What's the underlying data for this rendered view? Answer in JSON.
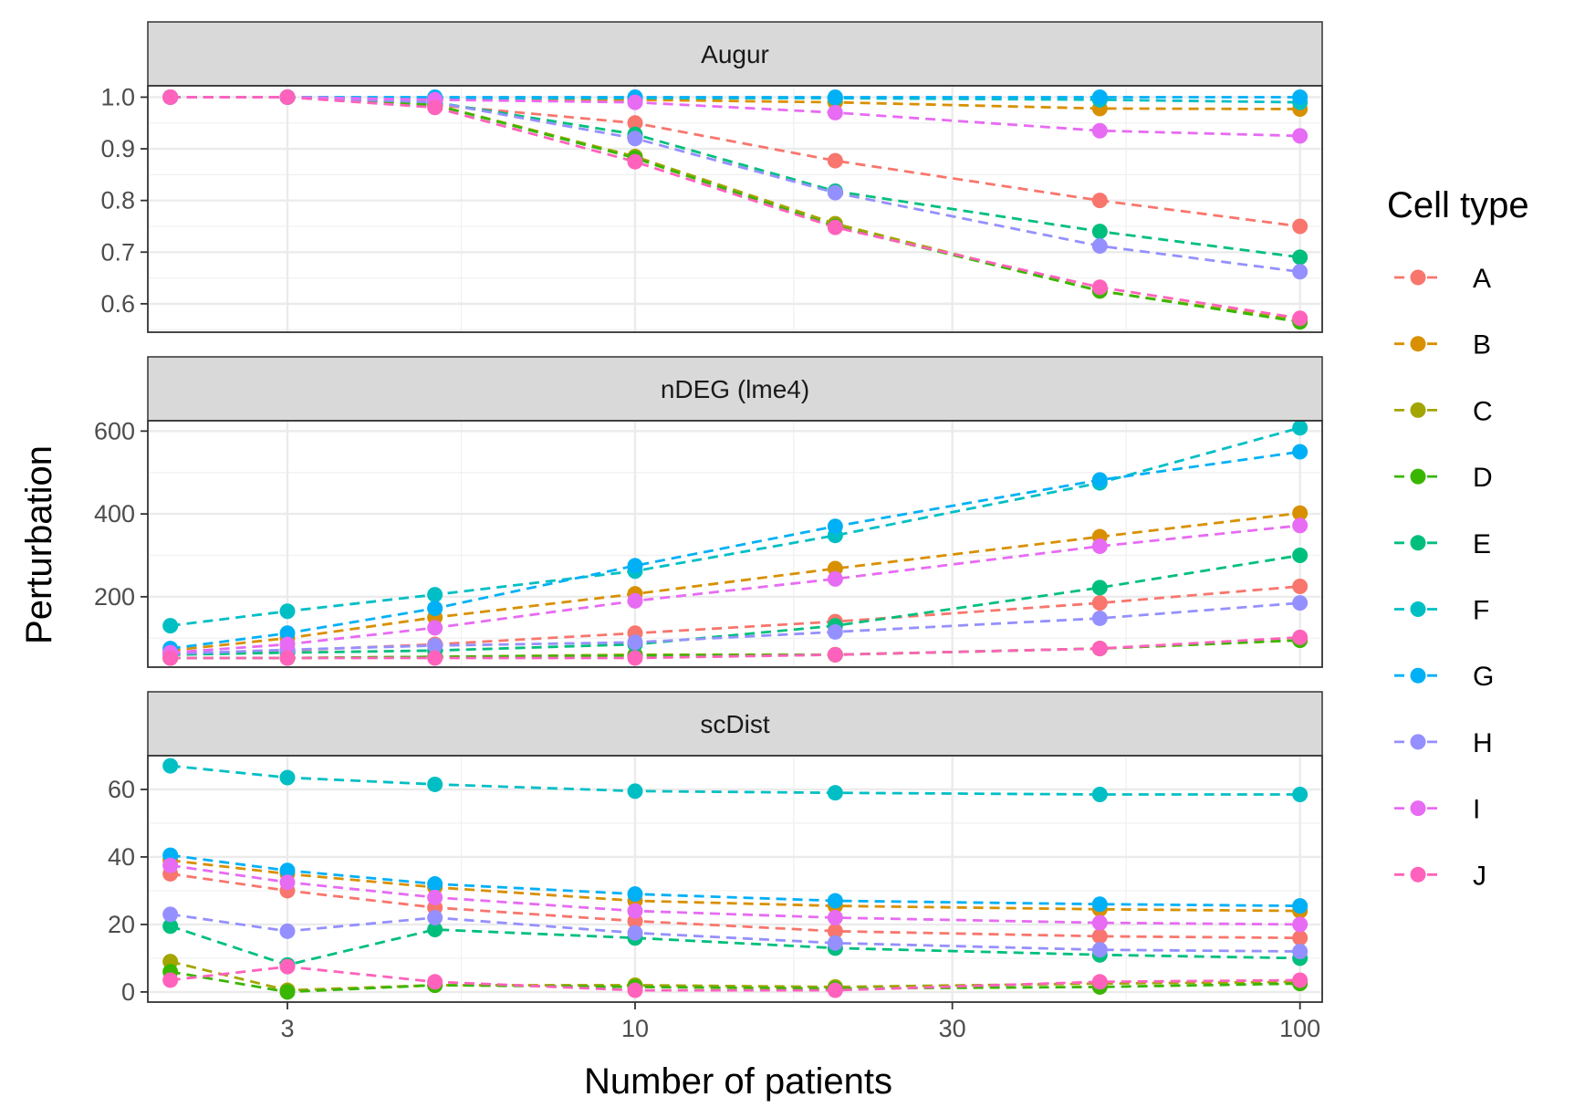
{
  "chart_data": {
    "type": "line",
    "xlabel": "Number of patients",
    "ylabel": "Perturbation",
    "x_scale": "log10",
    "x": [
      2,
      3,
      5,
      10,
      20,
      50,
      100
    ],
    "x_ticks": [
      3,
      10,
      30,
      100
    ],
    "x_tick_labels": [
      "3",
      "10",
      "30",
      "100"
    ],
    "xlim": [
      1.85,
      108
    ],
    "grid": true,
    "line_style": "dashed",
    "legend": {
      "title": "Cell type",
      "position": "right",
      "entries": [
        "A",
        "B",
        "C",
        "D",
        "E",
        "F",
        "G",
        "H",
        "I",
        "J"
      ]
    },
    "colors": {
      "A": "#F8766D",
      "B": "#D89000",
      "C": "#A3A500",
      "D": "#39B600",
      "E": "#00BF7D",
      "F": "#00BFC4",
      "G": "#00B0F6",
      "H": "#9590FF",
      "I": "#E76BF3",
      "J": "#FF62BC"
    },
    "panels": [
      {
        "title": "Augur",
        "ylim": [
          0.545,
          1.022
        ],
        "y_ticks": [
          0.6,
          0.7,
          0.8,
          0.9,
          1.0
        ],
        "y_tick_labels": [
          "0.6",
          "0.7",
          "0.8",
          "0.9",
          "1.0"
        ],
        "series": [
          {
            "name": "A",
            "values": [
              1.0,
              1.0,
              0.985,
              0.95,
              0.877,
              0.8,
              0.75
            ]
          },
          {
            "name": "B",
            "values": [
              1.0,
              1.0,
              0.995,
              0.995,
              0.99,
              0.978,
              0.977
            ]
          },
          {
            "name": "C",
            "values": [
              1.0,
              1.0,
              0.985,
              0.885,
              0.755,
              0.625,
              0.568
            ]
          },
          {
            "name": "D",
            "values": [
              1.0,
              1.0,
              0.985,
              0.882,
              0.75,
              0.625,
              0.565
            ]
          },
          {
            "name": "E",
            "values": [
              1.0,
              1.0,
              0.99,
              0.928,
              0.818,
              0.74,
              0.69
            ]
          },
          {
            "name": "F",
            "values": [
              1.0,
              1.0,
              0.998,
              0.998,
              0.998,
              0.995,
              0.99
            ]
          },
          {
            "name": "G",
            "values": [
              1.0,
              1.0,
              1.0,
              1.0,
              1.0,
              1.0,
              1.0
            ]
          },
          {
            "name": "H",
            "values": [
              1.0,
              1.0,
              0.99,
              0.92,
              0.815,
              0.712,
              0.662
            ]
          },
          {
            "name": "I",
            "values": [
              1.0,
              1.0,
              0.995,
              0.99,
              0.97,
              0.935,
              0.925
            ]
          },
          {
            "name": "J",
            "values": [
              1.0,
              1.0,
              0.98,
              0.875,
              0.748,
              0.632,
              0.572
            ]
          }
        ]
      },
      {
        "title": "nDEG (lme4)",
        "ylim": [
          30,
          625
        ],
        "y_ticks": [
          200,
          400,
          600
        ],
        "y_tick_labels": [
          "200",
          "400",
          "600"
        ],
        "series": [
          {
            "name": "A",
            "values": [
              62,
              70,
              85,
              112,
              140,
              185,
              225
            ]
          },
          {
            "name": "B",
            "values": [
              70,
              100,
              150,
              207,
              268,
              345,
              402
            ]
          },
          {
            "name": "C",
            "values": [
              52,
              52,
              55,
              60,
              60,
              75,
              95
            ]
          },
          {
            "name": "D",
            "values": [
              52,
              52,
              55,
              58,
              60,
              75,
              95
            ]
          },
          {
            "name": "E",
            "values": [
              60,
              65,
              70,
              85,
              130,
              222,
              300
            ]
          },
          {
            "name": "F",
            "values": [
              130,
              165,
              205,
              262,
              348,
              475,
              608
            ]
          },
          {
            "name": "G",
            "values": [
              75,
              112,
              172,
              275,
              370,
              482,
              550
            ]
          },
          {
            "name": "H",
            "values": [
              62,
              72,
              82,
              90,
              115,
              148,
              185
            ]
          },
          {
            "name": "I",
            "values": [
              65,
              85,
              125,
              190,
              243,
              322,
              372
            ]
          },
          {
            "name": "J",
            "values": [
              52,
              52,
              52,
              52,
              60,
              75,
              102
            ]
          }
        ]
      },
      {
        "title": "scDist",
        "ylim": [
          -3,
          70
        ],
        "y_ticks": [
          0,
          20,
          40,
          60
        ],
        "y_tick_labels": [
          "0",
          "20",
          "40",
          "60"
        ],
        "series": [
          {
            "name": "A",
            "values": [
              35,
              30,
              25,
              21,
              18,
              16.5,
              16
            ]
          },
          {
            "name": "B",
            "values": [
              39,
              35,
              31,
              27,
              25.5,
              24.5,
              24
            ]
          },
          {
            "name": "C",
            "values": [
              9,
              0.5,
              2,
              2,
              1.5,
              2.5,
              3
            ]
          },
          {
            "name": "D",
            "values": [
              6,
              0,
              2,
              1.5,
              1,
              1.5,
              2.5
            ]
          },
          {
            "name": "E",
            "values": [
              19.5,
              8,
              18.5,
              16,
              13,
              11,
              10
            ]
          },
          {
            "name": "F",
            "values": [
              67,
              63.5,
              61.5,
              59.5,
              59,
              58.5,
              58.5
            ]
          },
          {
            "name": "G",
            "values": [
              40.5,
              36,
              32,
              29,
              27,
              26,
              25.5
            ]
          },
          {
            "name": "H",
            "values": [
              23,
              18,
              22,
              17.5,
              14.5,
              12.5,
              12
            ]
          },
          {
            "name": "I",
            "values": [
              37.5,
              32.5,
              28,
              24,
              22,
              20.5,
              20
            ]
          },
          {
            "name": "J",
            "values": [
              3.5,
              7.5,
              3,
              0.5,
              0.5,
              3,
              3.5
            ]
          }
        ]
      }
    ]
  }
}
